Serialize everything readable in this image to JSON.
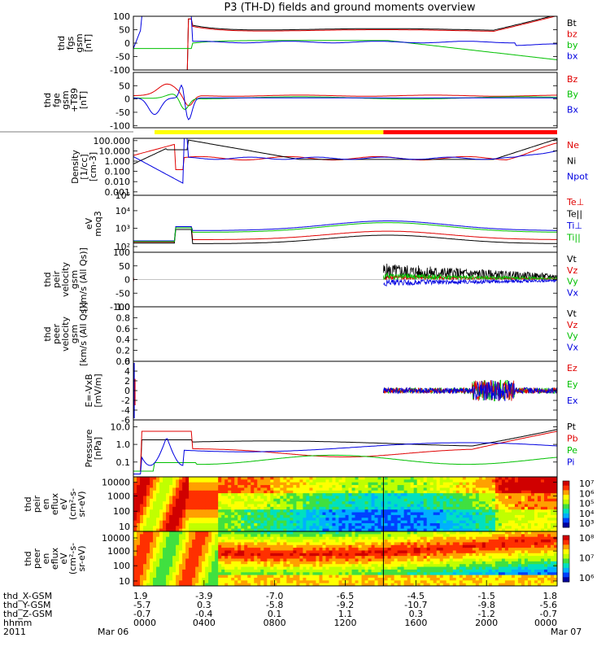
{
  "title": "P3 (TH-D) fields and ground moments overview",
  "colors": {
    "black": "#000000",
    "red": "#e00000",
    "green": "#00c000",
    "blue": "#0000e0",
    "yellow": "#ffff00",
    "bar_red": "#ff0000"
  },
  "chart_data": [
    {
      "type": "line",
      "id": "fgs",
      "ylabel": [
        "thd",
        "fgs",
        "gsm",
        "[nT]"
      ],
      "yticks": [
        "100",
        "50",
        "0",
        "-50",
        "-100"
      ],
      "ylim": [
        -100,
        100
      ],
      "legend": [
        {
          "name": "Bt",
          "color": "black"
        },
        {
          "name": "bz",
          "color": "red"
        },
        {
          "name": "by",
          "color": "green"
        },
        {
          "name": "bx",
          "color": "blue"
        }
      ]
    },
    {
      "type": "line",
      "id": "fge",
      "ylabel": [
        "thd",
        "fge",
        "gsm",
        "+T89",
        "[nT]"
      ],
      "yticks": [
        "50",
        "0",
        "-50",
        "-100"
      ],
      "ylim": [
        -130,
        80
      ],
      "legend": [
        {
          "name": "Bz",
          "color": "red"
        },
        {
          "name": "By",
          "color": "green"
        },
        {
          "name": "Bx",
          "color": "blue"
        }
      ],
      "status_bar": [
        {
          "from": 0.05,
          "to": 0.59,
          "color": "yellow"
        },
        {
          "from": 0.59,
          "to": 1.0,
          "color": "bar_red"
        }
      ]
    },
    {
      "type": "line",
      "id": "density",
      "ylabel": [
        "Density",
        "[1/cc]",
        "[cm-3]"
      ],
      "yticks": [
        "100.000",
        "10.000",
        "1.000",
        "0.100",
        "0.010",
        "0.001"
      ],
      "ylim": [
        0.0003,
        300
      ],
      "legend": [
        {
          "name": "Ne",
          "color": "red"
        },
        {
          "name": "Ni",
          "color": "black"
        },
        {
          "name": "Npot",
          "color": "blue"
        }
      ]
    },
    {
      "type": "line",
      "id": "temp",
      "ylabel": [
        "eV",
        "moq3"
      ],
      "yticks": [
        "10⁵",
        "10⁴",
        "10³",
        "10²"
      ],
      "ylim": [
        40,
        100000
      ],
      "legend": [
        {
          "name": "Te⊥",
          "color": "red"
        },
        {
          "name": "Te||",
          "color": "black"
        },
        {
          "name": "Ti⊥",
          "color": "blue"
        },
        {
          "name": "Ti||",
          "color": "green"
        }
      ]
    },
    {
      "type": "line",
      "id": "peir_vel",
      "ylabel": [
        "thd",
        "peir",
        "velocity",
        "gsm",
        "[km/s (All Qs)]"
      ],
      "yticks": [
        "100",
        "50",
        "0",
        "-50",
        "-100"
      ],
      "ylim": [
        -100,
        100
      ],
      "legend": [
        {
          "name": "Vt",
          "color": "black"
        },
        {
          "name": "Vz",
          "color": "red"
        },
        {
          "name": "Vy",
          "color": "green"
        },
        {
          "name": "Vx",
          "color": "blue"
        }
      ]
    },
    {
      "type": "line",
      "id": "peer_vel",
      "ylabel": [
        "thd",
        "peer",
        "velocity",
        "gsm",
        "[km/s (All Qs)]"
      ],
      "yticks": [
        "1.0",
        "0.8",
        "0.6",
        "0.4",
        "0.2",
        "0.0"
      ],
      "ylim": [
        0,
        1
      ],
      "legend": [
        {
          "name": "Vt",
          "color": "black"
        },
        {
          "name": "Vz",
          "color": "red"
        },
        {
          "name": "Vy",
          "color": "green"
        },
        {
          "name": "Vx",
          "color": "blue"
        }
      ]
    },
    {
      "type": "line",
      "id": "efield",
      "ylabel": [
        "E=-VxB",
        "[mV/m]"
      ],
      "yticks": [
        "6",
        "4",
        "2",
        "0",
        "-2",
        "-4",
        "-6"
      ],
      "ylim": [
        -6,
        6
      ],
      "legend": [
        {
          "name": "Ez",
          "color": "red"
        },
        {
          "name": "Ey",
          "color": "green"
        },
        {
          "name": "Ex",
          "color": "blue"
        }
      ]
    },
    {
      "type": "line",
      "id": "pressure",
      "ylabel": [
        "Pressure",
        "[nPa]"
      ],
      "yticks": [
        "10.0",
        "1.0",
        "0.1"
      ],
      "ylim": [
        0.03,
        30
      ],
      "legend": [
        {
          "name": "Pt",
          "color": "black"
        },
        {
          "name": "Pb",
          "color": "red"
        },
        {
          "name": "Pe",
          "color": "green"
        },
        {
          "name": "Pi",
          "color": "blue"
        }
      ]
    },
    {
      "type": "heatmap",
      "id": "peir_eflux",
      "ylabel": [
        "thd",
        "peir",
        "en",
        "eflux",
        "eV",
        "(cm²-s-",
        "sr-eV)"
      ],
      "yticks": [
        "10000",
        "1000",
        "100",
        "10"
      ],
      "colorbar_ticks": [
        "10⁷",
        "10⁶",
        "10⁵",
        "10⁴",
        "10³"
      ]
    },
    {
      "type": "heatmap",
      "id": "peer_eflux",
      "ylabel": [
        "thd",
        "peer",
        "en",
        "eflux",
        "eV",
        "(cm²-s-",
        "sr-eV)"
      ],
      "yticks": [
        "10000",
        "1000",
        "100",
        "10"
      ],
      "colorbar_ticks": [
        "10⁸",
        "10⁷",
        "10⁶"
      ]
    }
  ],
  "ephemeris": {
    "labels": [
      "thd_X-GSM",
      "thd_Y-GSM",
      "thd_Z-GSM",
      "hhmm",
      "2011"
    ],
    "columns": [
      {
        "vals": [
          "1.9",
          "-5.7",
          "-0.7",
          "0000"
        ],
        "date": "Mar 06"
      },
      {
        "vals": [
          "-3.9",
          "0.3",
          "-0.4",
          "0400"
        ],
        "date": ""
      },
      {
        "vals": [
          "-7.0",
          "-5.8",
          "0.1",
          "0800"
        ],
        "date": ""
      },
      {
        "vals": [
          "-6.5",
          "-9.2",
          "1.1",
          "1200"
        ],
        "date": ""
      },
      {
        "vals": [
          "-4.5",
          "-10.7",
          "0.3",
          "1600"
        ],
        "date": ""
      },
      {
        "vals": [
          "-1.5",
          "-9.8",
          "-1.2",
          "2000"
        ],
        "date": ""
      },
      {
        "vals": [
          "1.8",
          "-5.6",
          "-0.7",
          "0000"
        ],
        "date": "Mar 07"
      }
    ]
  }
}
